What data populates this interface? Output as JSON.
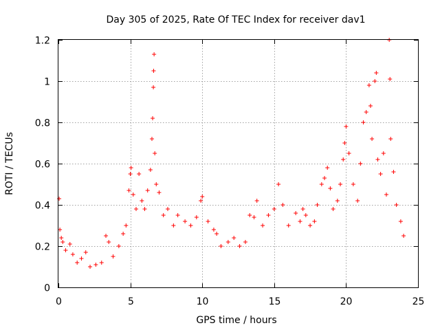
{
  "chart_data": {
    "type": "scatter",
    "title": "Day 305 of 2025, Rate Of TEC Index for receiver dav1",
    "xlabel": "GPS time / hours",
    "ylabel": "ROTI / TECUs",
    "xlim": [
      0,
      25
    ],
    "ylim": [
      0,
      1.2
    ],
    "x_ticks": [
      0,
      5,
      10,
      15,
      20,
      25
    ],
    "x_tick_labels": [
      "0",
      "5",
      "10",
      "15",
      "20",
      "25"
    ],
    "y_ticks": [
      0,
      0.2,
      0.4,
      0.6,
      0.8,
      1.0,
      1.2
    ],
    "y_tick_labels": [
      "0",
      "0.2",
      "0.4",
      "0.6",
      "0.8",
      "1",
      "1.2"
    ],
    "grid": true,
    "marker": "plus",
    "marker_color": "#ff0000",
    "series": [
      {
        "name": "ROTI",
        "points": [
          [
            0.05,
            0.43
          ],
          [
            0.1,
            0.28
          ],
          [
            0.2,
            0.24
          ],
          [
            0.3,
            0.22
          ],
          [
            0.5,
            0.18
          ],
          [
            0.8,
            0.21
          ],
          [
            1.0,
            0.16
          ],
          [
            1.3,
            0.12
          ],
          [
            1.6,
            0.14
          ],
          [
            1.9,
            0.17
          ],
          [
            2.2,
            0.1
          ],
          [
            2.6,
            0.11
          ],
          [
            3.0,
            0.12
          ],
          [
            3.3,
            0.25
          ],
          [
            3.5,
            0.22
          ],
          [
            3.8,
            0.15
          ],
          [
            4.2,
            0.2
          ],
          [
            4.5,
            0.26
          ],
          [
            4.7,
            0.3
          ],
          [
            4.9,
            0.47
          ],
          [
            5.0,
            0.55
          ],
          [
            5.05,
            0.58
          ],
          [
            5.2,
            0.45
          ],
          [
            5.4,
            0.38
          ],
          [
            5.6,
            0.55
          ],
          [
            5.8,
            0.42
          ],
          [
            6.0,
            0.38
          ],
          [
            6.2,
            0.47
          ],
          [
            6.4,
            0.57
          ],
          [
            6.5,
            0.72
          ],
          [
            6.55,
            0.82
          ],
          [
            6.6,
            0.97
          ],
          [
            6.62,
            1.05
          ],
          [
            6.65,
            1.13
          ],
          [
            6.7,
            0.65
          ],
          [
            6.8,
            0.5
          ],
          [
            7.0,
            0.46
          ],
          [
            7.3,
            0.35
          ],
          [
            7.6,
            0.38
          ],
          [
            8.0,
            0.3
          ],
          [
            8.3,
            0.35
          ],
          [
            8.8,
            0.32
          ],
          [
            9.2,
            0.3
          ],
          [
            9.6,
            0.34
          ],
          [
            9.9,
            0.42
          ],
          [
            10.0,
            0.44
          ],
          [
            10.4,
            0.32
          ],
          [
            10.8,
            0.28
          ],
          [
            11.0,
            0.26
          ],
          [
            11.3,
            0.2
          ],
          [
            11.8,
            0.22
          ],
          [
            12.2,
            0.24
          ],
          [
            12.6,
            0.2
          ],
          [
            13.0,
            0.22
          ],
          [
            13.3,
            0.35
          ],
          [
            13.6,
            0.34
          ],
          [
            13.8,
            0.42
          ],
          [
            14.2,
            0.3
          ],
          [
            14.6,
            0.35
          ],
          [
            15.0,
            0.38
          ],
          [
            15.3,
            0.5
          ],
          [
            15.6,
            0.4
          ],
          [
            16.0,
            0.3
          ],
          [
            16.5,
            0.36
          ],
          [
            16.8,
            0.32
          ],
          [
            17.0,
            0.38
          ],
          [
            17.2,
            0.35
          ],
          [
            17.5,
            0.3
          ],
          [
            17.8,
            0.32
          ],
          [
            18.0,
            0.4
          ],
          [
            18.3,
            0.5
          ],
          [
            18.5,
            0.53
          ],
          [
            18.7,
            0.58
          ],
          [
            18.9,
            0.48
          ],
          [
            19.1,
            0.38
          ],
          [
            19.4,
            0.42
          ],
          [
            19.6,
            0.5
          ],
          [
            19.8,
            0.62
          ],
          [
            19.9,
            0.7
          ],
          [
            20.0,
            0.78
          ],
          [
            20.2,
            0.65
          ],
          [
            20.5,
            0.5
          ],
          [
            20.8,
            0.42
          ],
          [
            21.0,
            0.6
          ],
          [
            21.2,
            0.8
          ],
          [
            21.4,
            0.85
          ],
          [
            21.6,
            0.98
          ],
          [
            21.7,
            0.88
          ],
          [
            21.8,
            0.72
          ],
          [
            22.0,
            1.0
          ],
          [
            22.1,
            1.04
          ],
          [
            22.2,
            0.62
          ],
          [
            22.4,
            0.55
          ],
          [
            22.6,
            0.65
          ],
          [
            22.8,
            0.45
          ],
          [
            23.0,
            1.2
          ],
          [
            23.05,
            1.01
          ],
          [
            23.1,
            0.72
          ],
          [
            23.3,
            0.56
          ],
          [
            23.5,
            0.4
          ],
          [
            23.8,
            0.32
          ],
          [
            24.0,
            0.25
          ]
        ]
      }
    ]
  }
}
